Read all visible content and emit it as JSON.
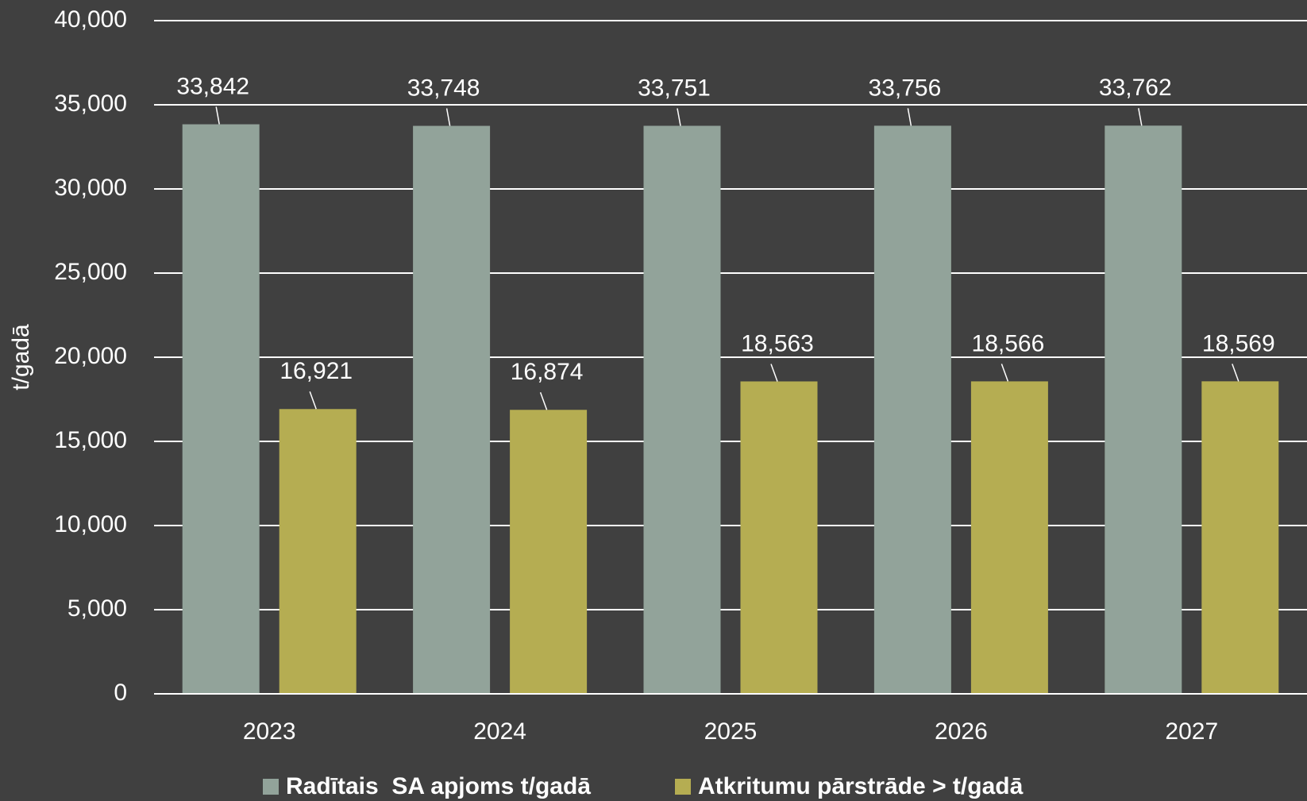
{
  "chart_data": {
    "type": "bar",
    "y_label": "t/gadā",
    "categories": [
      "2023",
      "2024",
      "2025",
      "2026",
      "2027"
    ],
    "series": [
      {
        "name": "Radītais  SA apjoms t/gadā",
        "color": "#92a39a",
        "values": [
          33842,
          33748,
          33751,
          33756,
          33762
        ],
        "value_labels": [
          "33,842",
          "33,748",
          "33,751",
          "33,756",
          "33,762"
        ]
      },
      {
        "name": "Atkritumu pārstrāde > t/gadā",
        "color": "#b5ad52",
        "values": [
          16921,
          16874,
          18563,
          18566,
          18569
        ],
        "value_labels": [
          "16,921",
          "16,874",
          "18,563",
          "18,566",
          "18,569"
        ]
      }
    ],
    "ylim": [
      0,
      40000
    ],
    "yticks": [
      0,
      {
        "value": 5000,
        "label": "5,000"
      },
      {
        "value": 10000,
        "label": "10,000"
      },
      {
        "value": 15000,
        "label": "15,000"
      },
      {
        "value": 20000,
        "label": "20,000"
      },
      {
        "value": 25000,
        "label": "25,000"
      },
      {
        "value": 30000,
        "label": "30,000"
      },
      {
        "value": 35000,
        "label": "35,000"
      },
      {
        "value": 40000,
        "label": "40,000"
      }
    ],
    "grid": true,
    "legend": "bottom"
  }
}
